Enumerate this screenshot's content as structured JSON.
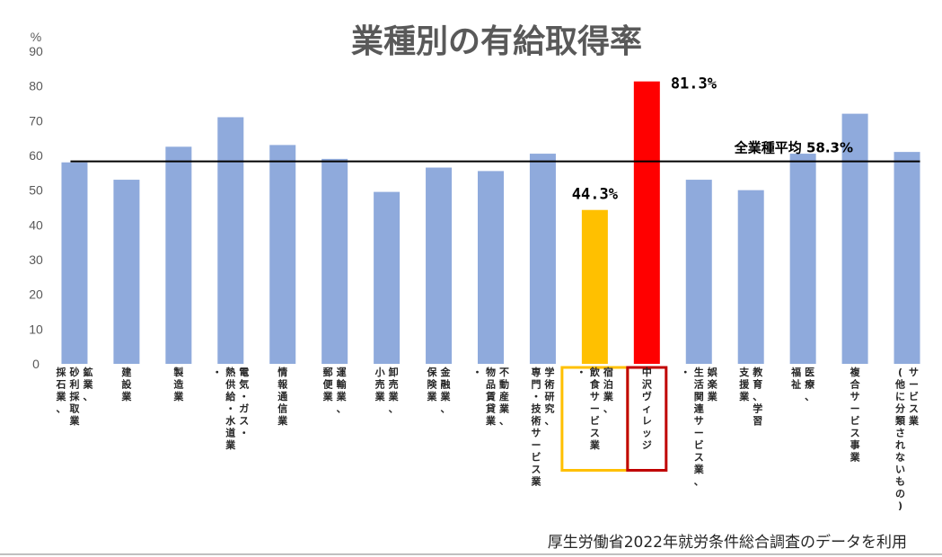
{
  "chart_data": {
    "type": "bar",
    "title": "業種別の有給取得率",
    "ylabel": "%",
    "ylim": [
      0,
      90
    ],
    "yticks": [
      0,
      10,
      20,
      30,
      40,
      50,
      60,
      70,
      80,
      90
    ],
    "grid": false,
    "categories": [
      [
        "鉱業、",
        "砂利採取業",
        "採石業、"
      ],
      [
        "建設業"
      ],
      [
        "製造業"
      ],
      [
        "電気・ガス・",
        "熱供給・水道業",
        "・"
      ],
      [
        "情報通信業"
      ],
      [
        "運輸業、",
        "郵便業"
      ],
      [
        "卸売業、",
        "小売業"
      ],
      [
        "金融業、",
        "保険業"
      ],
      [
        "不動産業、",
        "物品賃貸業",
        "・"
      ],
      [
        "学術研究、",
        "専門・技術サービス業"
      ],
      [
        "宿泊業、",
        "飲食サービス業",
        "・"
      ],
      [
        "中沢ヴィレッジ"
      ],
      [
        "娯楽業",
        "生活関連サービス業、",
        "・"
      ],
      [
        "教育、学習",
        "支援業"
      ],
      [
        "医療、",
        "福祉"
      ],
      [
        "複合サービス事業"
      ],
      [
        "サービス業",
        "(他に分類されないもの)"
      ]
    ],
    "values": [
      58,
      53,
      62.5,
      71,
      63,
      59,
      49.5,
      56.5,
      55.5,
      60.5,
      44.3,
      81.3,
      53,
      50,
      60.5,
      72,
      61
    ],
    "bar_colors": [
      "#8faadc",
      "#8faadc",
      "#8faadc",
      "#8faadc",
      "#8faadc",
      "#8faadc",
      "#8faadc",
      "#8faadc",
      "#8faadc",
      "#8faadc",
      "#ffc000",
      "#ff0000",
      "#8faadc",
      "#8faadc",
      "#8faadc",
      "#8faadc",
      "#8faadc"
    ],
    "data_labels": [
      {
        "index": 10,
        "text": "44.3%"
      },
      {
        "index": 11,
        "text": "81.3%"
      }
    ],
    "highlight_boxes": [
      {
        "index": 10,
        "color": "#ffc000"
      },
      {
        "index": 11,
        "color": "#c00000"
      }
    ],
    "reference_line": {
      "value": 58.3,
      "label": "全業種平均 58.3%",
      "color": "#000000"
    },
    "source_note": "厚生労働省2022年就労条件総合調査のデータを利用"
  }
}
